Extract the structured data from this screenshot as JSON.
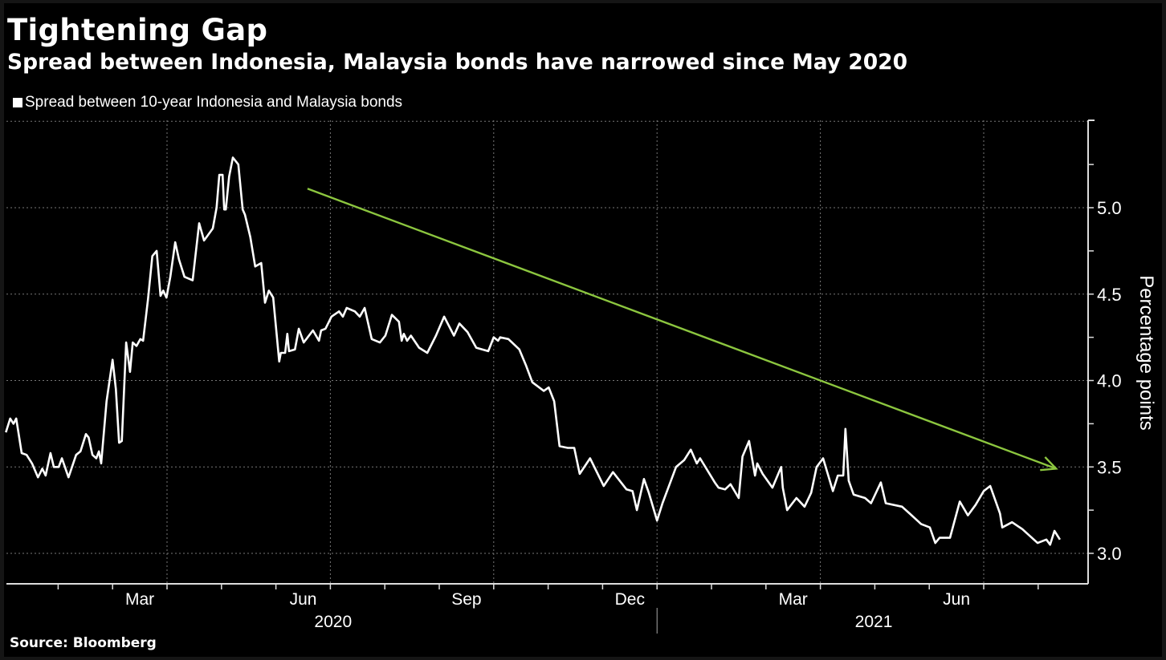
{
  "chart_data": {
    "type": "line",
    "title": "Tightening Gap",
    "subtitle": "Spread between Indonesia, Malaysia bonds have narrowed since May 2020",
    "legend": [
      {
        "label": "Spread between 10-year Indonesia and Malaysia bonds",
        "color": "#ffffff"
      }
    ],
    "legend_placement": "top-left",
    "ylabel": "Percentage points",
    "ylim": [
      2.82,
      5.5
    ],
    "y_ticks": [
      "3.0",
      "3.5",
      "4.0",
      "4.5",
      "5.0"
    ],
    "x_unit": "months since 2020-01-01",
    "xlim": [
      0,
      19.6
    ],
    "x_ticks": [
      {
        "label": "Mar",
        "x": 2.5
      },
      {
        "label": "Jun",
        "x": 5.5
      },
      {
        "label": "Sep",
        "x": 8.5
      },
      {
        "label": "Dec",
        "x": 11.5
      },
      {
        "label": "Mar",
        "x": 14.5
      },
      {
        "label": "Jun",
        "x": 17.5
      }
    ],
    "year_labels": [
      {
        "label": "2020",
        "x": 6.05
      },
      {
        "label": "2021",
        "x": 15.98
      }
    ],
    "grid": true,
    "source": "Source: Bloomberg",
    "series": [
      {
        "name": "Spread between 10-year Indonesia and Malaysia bonds",
        "color": "#ffffff",
        "x": [
          0.04,
          0.12,
          0.18,
          0.23,
          0.33,
          0.42,
          0.52,
          0.63,
          0.71,
          0.77,
          0.86,
          0.92,
          1.01,
          1.07,
          1.19,
          1.33,
          1.41,
          1.51,
          1.56,
          1.63,
          1.7,
          1.75,
          1.79,
          1.89,
          2.0,
          2.06,
          2.12,
          2.17,
          2.25,
          2.32,
          2.37,
          2.44,
          2.51,
          2.56,
          2.65,
          2.73,
          2.81,
          2.88,
          2.93,
          2.99,
          3.06,
          3.15,
          3.22,
          3.32,
          3.47,
          3.59,
          3.68,
          3.84,
          3.91,
          3.96,
          4.02,
          4.05,
          4.08,
          4.14,
          4.21,
          4.31,
          4.39,
          4.43,
          4.53,
          4.62,
          4.73,
          4.8,
          4.87,
          4.95,
          5.06,
          5.09,
          5.17,
          5.21,
          5.24,
          5.35,
          5.42,
          5.51,
          5.68,
          5.79,
          5.83,
          5.91,
          6.02,
          6.16,
          6.23,
          6.3,
          6.45,
          6.54,
          6.63,
          6.76,
          6.91,
          7.01,
          7.13,
          7.26,
          7.31,
          7.35,
          7.41,
          7.48,
          7.63,
          7.78,
          7.94,
          8.09,
          8.27,
          8.37,
          8.52,
          8.68,
          8.9,
          9.0,
          9.08,
          9.12,
          9.27,
          9.47,
          9.59,
          9.71,
          9.92,
          10.01,
          10.11,
          10.21,
          10.36,
          10.48,
          10.58,
          10.77,
          11.02,
          11.19,
          11.44,
          11.55,
          11.63,
          11.76,
          11.85,
          12.0,
          12.1,
          12.35,
          12.5,
          12.62,
          12.73,
          12.79,
          13.06,
          13.13,
          13.25,
          13.35,
          13.5,
          13.57,
          13.69,
          13.8,
          13.84,
          13.94,
          14.12,
          14.28,
          14.31,
          14.39,
          14.56,
          14.71,
          14.83,
          14.93,
          15.05,
          15.23,
          15.32,
          15.42,
          15.46,
          15.52,
          15.61,
          15.82,
          15.93,
          16.11,
          16.2,
          16.5,
          16.64,
          16.85,
          17.01,
          17.11,
          17.19,
          17.38,
          17.56,
          17.71,
          17.85,
          18.0,
          18.12,
          18.3,
          18.34,
          18.52,
          18.71,
          18.99,
          19.15,
          19.22,
          19.3,
          19.4
        ],
        "values": [
          3.7,
          3.78,
          3.75,
          3.78,
          3.58,
          3.57,
          3.52,
          3.44,
          3.49,
          3.45,
          3.58,
          3.5,
          3.5,
          3.55,
          3.44,
          3.57,
          3.59,
          3.69,
          3.67,
          3.57,
          3.55,
          3.59,
          3.52,
          3.88,
          4.12,
          3.95,
          3.64,
          3.65,
          4.22,
          4.05,
          4.22,
          4.2,
          4.24,
          4.23,
          4.47,
          4.72,
          4.75,
          4.49,
          4.52,
          4.48,
          4.6,
          4.8,
          4.7,
          4.6,
          4.58,
          4.91,
          4.81,
          4.88,
          5.0,
          5.19,
          5.19,
          4.99,
          4.99,
          5.18,
          5.29,
          5.25,
          4.99,
          4.96,
          4.83,
          4.66,
          4.68,
          4.45,
          4.52,
          4.48,
          4.11,
          4.16,
          4.16,
          4.27,
          4.17,
          4.18,
          4.3,
          4.22,
          4.29,
          4.23,
          4.29,
          4.3,
          4.37,
          4.4,
          4.37,
          4.42,
          4.4,
          4.37,
          4.42,
          4.24,
          4.22,
          4.26,
          4.38,
          4.34,
          4.23,
          4.27,
          4.23,
          4.26,
          4.19,
          4.16,
          4.26,
          4.37,
          4.26,
          4.33,
          4.28,
          4.19,
          4.17,
          4.25,
          4.23,
          4.25,
          4.24,
          4.18,
          4.09,
          3.99,
          3.94,
          3.96,
          3.88,
          3.62,
          3.61,
          3.61,
          3.46,
          3.55,
          3.39,
          3.47,
          3.37,
          3.36,
          3.25,
          3.43,
          3.35,
          3.19,
          3.29,
          3.5,
          3.54,
          3.6,
          3.52,
          3.55,
          3.41,
          3.38,
          3.37,
          3.4,
          3.32,
          3.56,
          3.65,
          3.45,
          3.52,
          3.46,
          3.38,
          3.5,
          3.38,
          3.25,
          3.32,
          3.27,
          3.35,
          3.5,
          3.55,
          3.36,
          3.45,
          3.45,
          3.72,
          3.42,
          3.34,
          3.32,
          3.29,
          3.41,
          3.29,
          3.27,
          3.23,
          3.17,
          3.15,
          3.06,
          3.09,
          3.09,
          3.3,
          3.22,
          3.28,
          3.36,
          3.39,
          3.23,
          3.15,
          3.18,
          3.14,
          3.06,
          3.08,
          3.05,
          3.13,
          3.08
        ]
      }
    ],
    "annotations": [
      {
        "type": "trend-arrow",
        "color": "#8cc63f",
        "from": [
          5.58,
          5.11
        ],
        "to": [
          19.33,
          3.49
        ]
      }
    ]
  }
}
